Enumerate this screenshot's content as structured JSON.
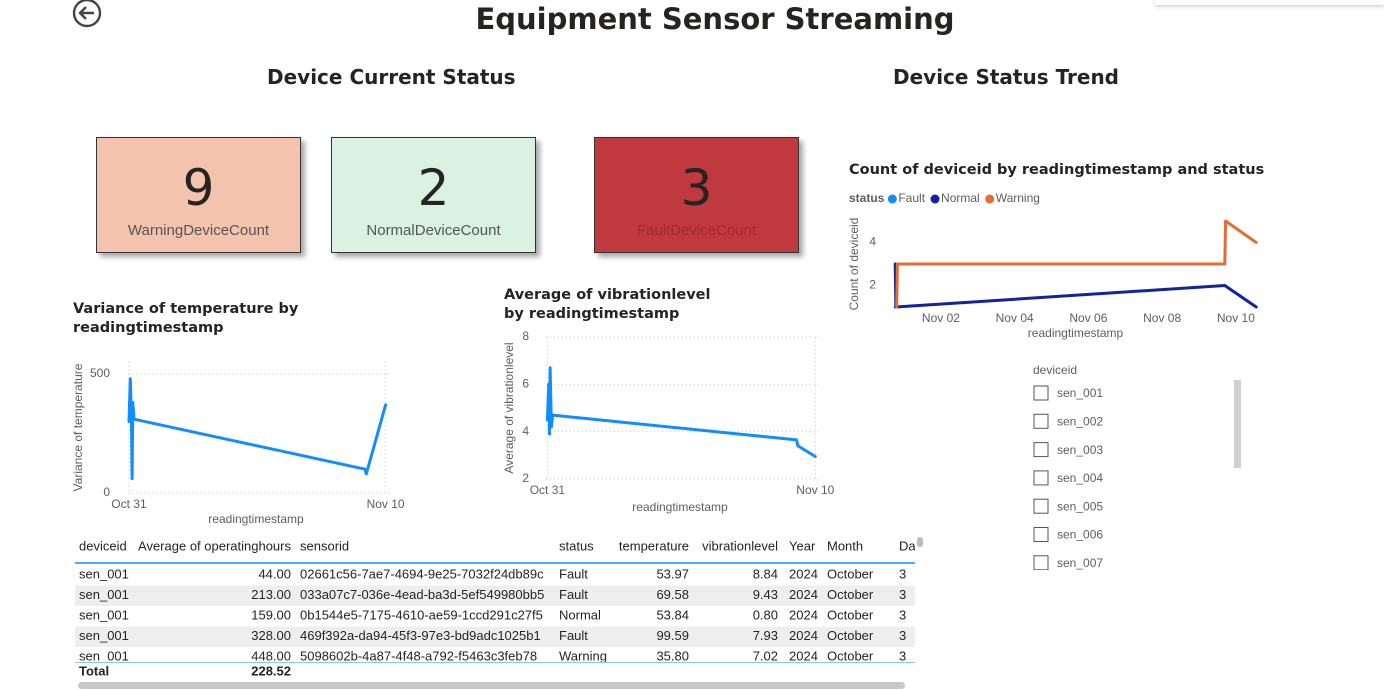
{
  "header": {
    "title": "Equipment Sensor Streaming"
  },
  "sections": [
    "Device Current Status",
    "Device Status Trend"
  ],
  "cards": [
    {
      "value": 9,
      "label": "WarningDeviceCount"
    },
    {
      "value": 2,
      "label": "NormalDeviceCount"
    },
    {
      "value": 3,
      "label": "FaultDeviceCount"
    }
  ],
  "chart_data": [
    {
      "type": "line",
      "title": "Variance of temperature by readingtimestamp",
      "xlabel": "readingtimestamp",
      "ylabel": "Variance of temperature",
      "x": [
        0,
        0.05,
        0.1,
        0.12,
        0.15,
        0.2,
        9.2,
        9.25,
        10
      ],
      "values": [
        300,
        480,
        290,
        60,
        380,
        310,
        100,
        80,
        370
      ],
      "color": "#118DFF",
      "xlim": [
        -0.35,
        10.25
      ],
      "xticks": [
        {
          "value": 0,
          "label": "Oct 31"
        },
        {
          "value": 10,
          "label": "Nov 10"
        }
      ],
      "ylim": [
        0,
        550
      ],
      "yticks": [
        0,
        500
      ],
      "grid": true
    },
    {
      "type": "line",
      "title": "Average of vibrationlevel by readingtimestamp",
      "xlabel": "readingtimestamp",
      "ylabel": "Average of vibrationlevel",
      "x": [
        0,
        0.05,
        0.08,
        0.1,
        0.15,
        0.2,
        9.3,
        9.35,
        10
      ],
      "values": [
        4.5,
        6,
        3.9,
        6.7,
        4.2,
        4.7,
        3.65,
        3.4,
        2.95
      ],
      "color": "#118DFF",
      "xlim": [
        -0.35,
        10.25
      ],
      "xticks": [
        {
          "value": 0,
          "label": "Oct 31"
        },
        {
          "value": 10,
          "label": "Nov 10"
        }
      ],
      "ylim": [
        2,
        8
      ],
      "yticks": [
        2,
        4,
        6,
        8
      ],
      "grid": true
    },
    {
      "type": "line",
      "title": "Count of deviceid by readingtimestamp and status",
      "xlabel": "readingtimestamp",
      "ylabel": "Count of deviceid",
      "legend_title": "status",
      "legend": "top-left",
      "series": [
        {
          "name": "Fault",
          "color": "#118DFF",
          "x": [
            0.76
          ],
          "values": [
            1
          ]
        },
        {
          "name": "Normal",
          "color": "#12239E",
          "x": [
            0.76,
            0.78,
            9.7,
            10.55
          ],
          "values": [
            3,
            1,
            2,
            1
          ]
        },
        {
          "name": "Warning",
          "color": "#E66C37",
          "x": [
            0.8,
            0.82,
            9.7,
            9.72,
            10.55
          ],
          "values": [
            1,
            3,
            3,
            5,
            4
          ]
        }
      ],
      "xlim": [
        0.7,
        10.6
      ],
      "xticks": [
        {
          "value": 2,
          "label": "Nov 02"
        },
        {
          "value": 4,
          "label": "Nov 04"
        },
        {
          "value": 6,
          "label": "Nov 06"
        },
        {
          "value": 8,
          "label": "Nov 08"
        },
        {
          "value": 10,
          "label": "Nov 10"
        }
      ],
      "ylim": [
        1,
        5
      ],
      "yticks": [
        2,
        4
      ],
      "grid": false
    }
  ],
  "table": {
    "columns": [
      "deviceid",
      "Average of operatinghours",
      "sensorid",
      "status",
      "temperature",
      "vibrationlevel",
      "Year",
      "Month",
      "Day"
    ],
    "rows": [
      [
        "sen_001",
        "44.00",
        "02661c56-7ae7-4694-9e25-7032f24db89c",
        "Fault",
        "53.97",
        "8.84",
        "2024",
        "October",
        "3"
      ],
      [
        "sen_001",
        "213.00",
        "033a07c7-036e-4ead-ba3d-5ef549980bb5",
        "Fault",
        "69.58",
        "9.43",
        "2024",
        "October",
        "3"
      ],
      [
        "sen_001",
        "159.00",
        "0b1544e5-7175-4610-ae59-1ccd291c27f5",
        "Normal",
        "53.84",
        "0.80",
        "2024",
        "October",
        "3"
      ],
      [
        "sen_001",
        "328.00",
        "469f392a-da94-45f3-97e3-bd9adc1025b1",
        "Fault",
        "99.59",
        "7.93",
        "2024",
        "October",
        "3"
      ],
      [
        "sen_001",
        "448.00",
        "5098602b-4a87-4f48-a792-f5463c3feb78",
        "Warning",
        "35.80",
        "7.02",
        "2024",
        "October",
        "3"
      ]
    ],
    "total": [
      "Total",
      "228.52"
    ]
  },
  "slicer": {
    "title": "deviceid",
    "items": [
      "sen_001",
      "sen_002",
      "sen_003",
      "sen_004",
      "sen_005",
      "sen_006",
      "sen_007"
    ]
  }
}
